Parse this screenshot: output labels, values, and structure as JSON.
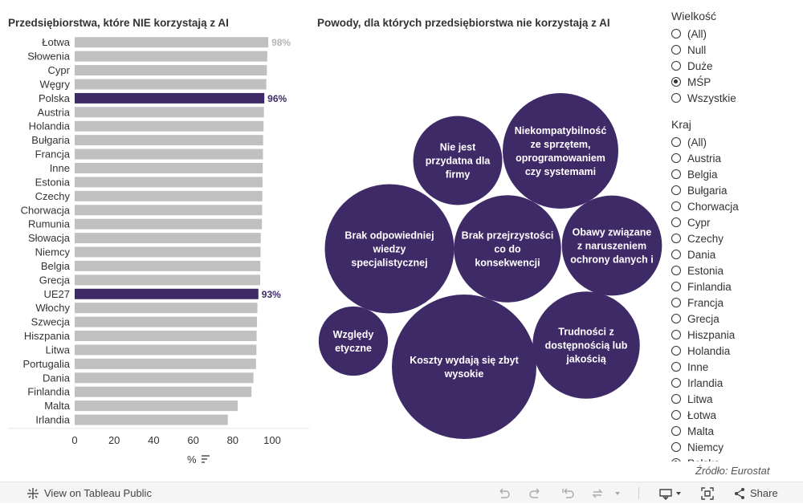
{
  "left_title": "Przedsiębiorstwa, które NIE korzystają z AI",
  "right_title": "Powody, dla których przedsiębiorstwa nie korzystają z AI",
  "chart_data": [
    {
      "type": "bar",
      "orientation": "horizontal",
      "title": "Przedsiębiorstwa, które NIE korzystają z AI",
      "xlabel": "%",
      "xlim": [
        0,
        100
      ],
      "x_ticks": [
        0,
        20,
        40,
        60,
        80,
        100
      ],
      "categories": [
        "Łotwa",
        "Słowenia",
        "Cypr",
        "Węgry",
        "Polska",
        "Austria",
        "Holandia",
        "Bułgaria",
        "Francja",
        "Inne",
        "Estonia",
        "Czechy",
        "Chorwacja",
        "Rumunia",
        "Słowacja",
        "Niemcy",
        "Belgia",
        "Grecja",
        "UE27",
        "Włochy",
        "Szwecja",
        "Hiszpania",
        "Litwa",
        "Portugalia",
        "Dania",
        "Finlandia",
        "Malta",
        "Irlandia"
      ],
      "values": [
        98,
        97.5,
        97.3,
        97,
        96,
        95.8,
        95.6,
        95.4,
        95.3,
        95.2,
        95.1,
        95,
        94.9,
        94.8,
        94.2,
        94.1,
        94,
        93.9,
        93,
        92.5,
        92.3,
        92.1,
        92,
        91.8,
        90.5,
        89.5,
        82.5,
        77.5
      ],
      "highlighted": [
        "Polska",
        "UE27"
      ],
      "data_labels": {
        "Łotwa": "98%",
        "Polska": "96%",
        "UE27": "93%"
      }
    },
    {
      "type": "bubble",
      "title": "Powody, dla których przedsiębiorstwa nie korzystają z AI",
      "items": [
        {
          "label_lines": [
            "Koszty wydają się zbyt",
            "wysokie"
          ],
          "value": 100
        },
        {
          "label_lines": [
            "Brak odpowiedniej",
            "wiedzy",
            "specjalistycznej"
          ],
          "value": 80
        },
        {
          "label_lines": [
            "Brak przejrzystości",
            "co do",
            "konsekwencji"
          ],
          "value": 55
        },
        {
          "label_lines": [
            "Trudności z",
            "dostępnością lub",
            "jakością"
          ],
          "value": 55
        },
        {
          "label_lines": [
            "Niekompatybilność",
            "ze sprzętem,",
            "oprogramowaniem",
            "czy systemami"
          ],
          "value": 64
        },
        {
          "label_lines": [
            "Obawy związane",
            "z naruszeniem",
            "ochrony danych i"
          ],
          "value": 48
        },
        {
          "label_lines": [
            "Nie jest",
            "przydatna dla",
            "firmy"
          ],
          "value": 38
        },
        {
          "label_lines": [
            "Względy",
            "etyczne"
          ],
          "value": 23
        }
      ]
    }
  ],
  "colors": {
    "highlight": "#3f2a68",
    "bar_default": "#c0c0c0",
    "label_muted": "#b5b5b5",
    "bubble": "#3f2a68"
  },
  "filters": {
    "size": {
      "title": "Wielkość",
      "options": [
        "(All)",
        "Null",
        "Duże",
        "MŚP",
        "Wszystkie"
      ],
      "selected": "MŚP"
    },
    "country": {
      "title": "Kraj",
      "options": [
        "(All)",
        "Austria",
        "Belgia",
        "Bułgaria",
        "Chorwacja",
        "Cypr",
        "Czechy",
        "Dania",
        "Estonia",
        "Finlandia",
        "Francja",
        "Grecja",
        "Hiszpania",
        "Holandia",
        "Inne",
        "Irlandia",
        "Litwa",
        "Łotwa",
        "Malta",
        "Niemcy",
        "Polska"
      ],
      "selected": "Polska"
    }
  },
  "source": "Źródło: Eurostat",
  "toolbar": {
    "view_label": "View on Tableau Public",
    "share_label": "Share"
  }
}
